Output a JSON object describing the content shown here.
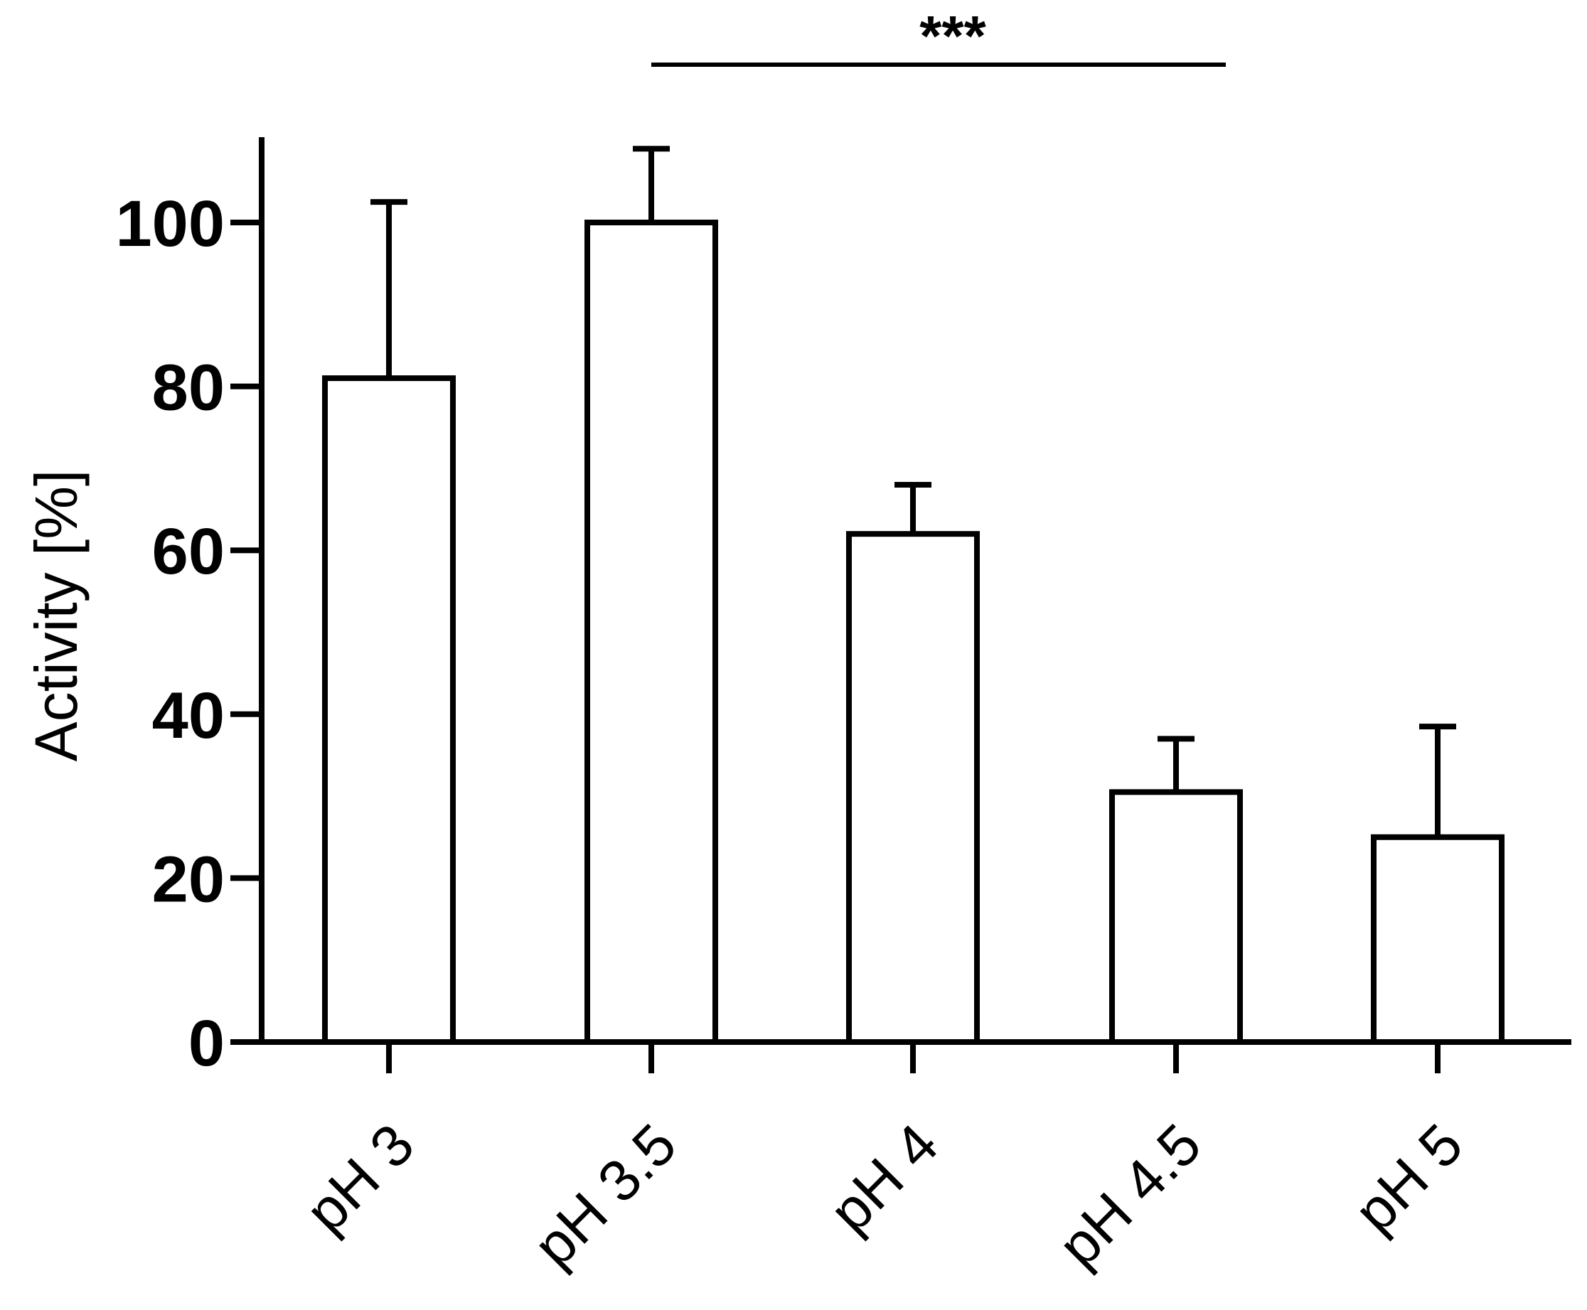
{
  "chart_data": {
    "type": "bar",
    "categories": [
      "pH 3",
      "pH 3.5",
      "pH 4",
      "pH 4.5",
      "pH 5"
    ],
    "values": [
      81,
      100,
      62,
      30.5,
      25
    ],
    "errors": [
      21.5,
      9,
      6,
      6.5,
      13.5
    ],
    "ylabel": "Activity [%]",
    "xlabel": "",
    "title": "",
    "ylim": [
      0,
      110
    ],
    "yticks": [
      0,
      20,
      40,
      60,
      80,
      100
    ],
    "grid": false,
    "bar_fill": "#ffffff",
    "stroke_color": "#000000",
    "significance": {
      "label": "***",
      "from": "pH 3.5",
      "to": "pH 4.5"
    }
  }
}
